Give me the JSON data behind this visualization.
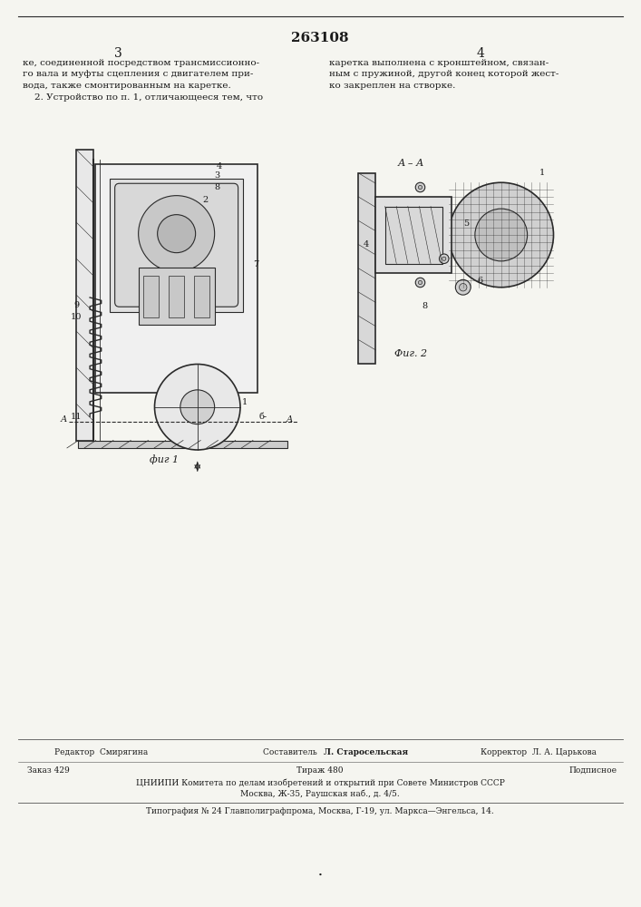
{
  "page_number_center": "263108",
  "page_col_left": "3",
  "page_col_right": "4",
  "bg_color": "#f5f5f0",
  "text_color": "#1a1a1a",
  "line_color": "#2a2a2a",
  "top_text_left": "ке, соединенной посредством трансмиссионно-\nго вала и муфты сцепления с двигателем при-\nвода, также смонтированным на каретке.\n    2. Устройство по п. 1, отличающееся тем, что",
  "top_text_right": "каретка выполнена с кронштейном, связан-\nным с пружиной, другой конец которой жест-\nко закреплен на створке.",
  "fig1_label": "фиг 1",
  "fig2_label": "Фиг. 2",
  "fig2_section_label": "А – А",
  "bottom_left_label": "Редактор  Смирягина",
  "bottom_center_label": "Составитель  Л. Старосельская",
  "bottom_right_label": "Корректор  Л. А. Царькова",
  "bottom_line1_left": "Заказ 429",
  "bottom_line1_center": "Тираж 480",
  "bottom_line1_right": "Подписное",
  "bottom_line2": "ЦНИИПИ Комитета по делам изобретений и открытий при Совете Министров СССР",
  "bottom_line3": "Москва, Ж-35, Раушская наб., д. 4/5.",
  "bottom_line4": "Типография № 24 Главполиграфпрома, Москва, Г-19, ул. Маркса—Энгельса, 14.",
  "separator_color": "#555555",
  "hatch_color": "#555555"
}
